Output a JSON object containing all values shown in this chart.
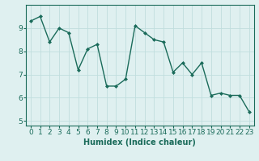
{
  "x": [
    0,
    1,
    2,
    3,
    4,
    5,
    6,
    7,
    8,
    9,
    10,
    11,
    12,
    13,
    14,
    15,
    16,
    17,
    18,
    19,
    20,
    21,
    22,
    23
  ],
  "y": [
    9.3,
    9.5,
    8.4,
    9.0,
    8.8,
    7.2,
    8.1,
    8.3,
    6.5,
    6.5,
    6.8,
    9.1,
    8.8,
    8.5,
    8.4,
    7.1,
    7.5,
    7.0,
    7.5,
    6.1,
    6.2,
    6.1,
    6.1,
    5.4
  ],
  "line_color": "#1a6b5a",
  "marker": "D",
  "marker_size": 2.0,
  "linewidth": 1.0,
  "xlabel": "Humidex (Indice chaleur)",
  "xlabel_fontsize": 7,
  "ylim": [
    4.8,
    10.0
  ],
  "xlim": [
    -0.5,
    23.5
  ],
  "yticks": [
    5,
    6,
    7,
    8,
    9
  ],
  "xticks": [
    0,
    1,
    2,
    3,
    4,
    5,
    6,
    7,
    8,
    9,
    10,
    11,
    12,
    13,
    14,
    15,
    16,
    17,
    18,
    19,
    20,
    21,
    22,
    23
  ],
  "bg_color": "#dff0f0",
  "grid_color": "#c0dede",
  "tick_fontsize": 6.5
}
